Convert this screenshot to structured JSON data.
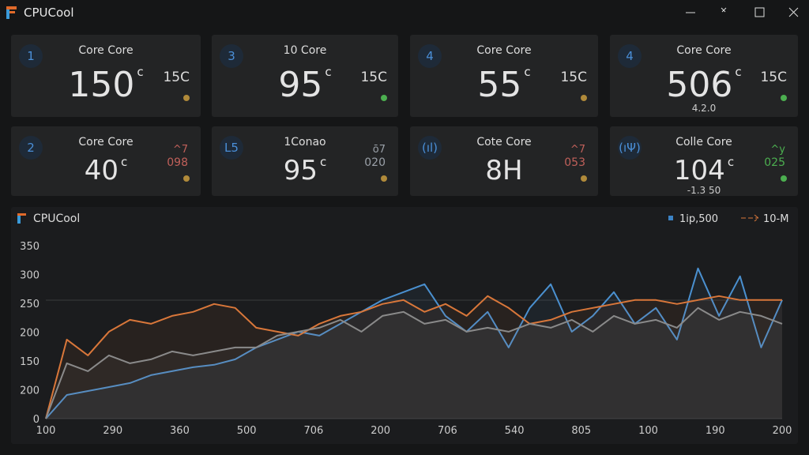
{
  "window": {
    "title": "CPUCool"
  },
  "cards": [
    {
      "index": "1",
      "title": "Core Core",
      "temp": "150",
      "unit": "c",
      "side": "15C",
      "sub": null,
      "dot": "#b08a3a"
    },
    {
      "index": "3",
      "title": "10 Core",
      "temp": "95",
      "unit": "c",
      "side": "15C",
      "sub": null,
      "dot": "#4caf50"
    },
    {
      "index": "4",
      "title": "Core Core",
      "temp": "55",
      "unit": "c",
      "side": "15C",
      "sub": null,
      "dot": "#b08a3a"
    },
    {
      "index": "4",
      "title": "Core Core",
      "temp": "506",
      "unit": "c",
      "side": "15C",
      "sub": "4.2.0",
      "dot": "#4caf50"
    },
    {
      "index": "2",
      "title": "Core Core",
      "temp": "40",
      "unit": "c",
      "side": "^7",
      "side2": "098",
      "sideColor": "#c0605a",
      "sub": null,
      "dot": "#b08a3a"
    },
    {
      "index": "L5",
      "title": "1Conao",
      "temp": "95",
      "unit": "c",
      "side": "ō7",
      "side2": "020",
      "sideColor": "#9aa0a8",
      "sub": null,
      "dot": "#b08a3a"
    },
    {
      "index": "(ıl)",
      "title": "Cote Core",
      "temp": "8H",
      "unit": null,
      "side": "^7",
      "side2": "053",
      "sideColor": "#c0605a",
      "sub": null,
      "dot": "#b08a3a"
    },
    {
      "index": "(ıΨ)",
      "title": "Colle Core",
      "temp": "104",
      "unit": "c",
      "side": "^y",
      "side2": "025",
      "sideColor": "#4caf50",
      "sub": "-1.3 50",
      "dot": "#4caf50"
    }
  ],
  "chart": {
    "title": "CPUCool",
    "legend": [
      {
        "name": "1ip,500",
        "color": "#3b82c4"
      },
      {
        "name": "10-M",
        "color": "#d9773a"
      }
    ],
    "y_labels": [
      "350",
      "300",
      "250",
      "200",
      "150",
      "200",
      "0"
    ],
    "x_labels": [
      "100",
      "290",
      "360",
      "500",
      "706",
      "200",
      "706",
      "540",
      "805",
      "100",
      "190",
      "200"
    ],
    "ylim": [
      0,
      350
    ],
    "series": [
      {
        "color": "#4a90d0",
        "values": [
          0,
          48,
          56,
          64,
          72,
          88,
          96,
          104,
          109,
          120,
          144,
          160,
          176,
          168,
          192,
          216,
          240,
          256,
          272,
          208,
          176,
          216,
          144,
          224,
          272,
          176,
          208,
          256,
          192,
          224,
          160,
          304,
          208,
          288,
          144,
          240
        ]
      },
      {
        "color": "#d9773a",
        "values": [
          0,
          160,
          128,
          176,
          200,
          192,
          208,
          216,
          232,
          224,
          184,
          176,
          168,
          192,
          208,
          216,
          232,
          240,
          216,
          232,
          208,
          248,
          224,
          192,
          200,
          216,
          224,
          232,
          240,
          240,
          232,
          240,
          248,
          240,
          240,
          240
        ]
      },
      {
        "color": "#8a8a8a",
        "values": [
          0,
          112,
          96,
          128,
          112,
          120,
          136,
          128,
          136,
          144,
          144,
          168,
          176,
          184,
          200,
          176,
          208,
          216,
          192,
          200,
          176,
          184,
          176,
          192,
          184,
          200,
          176,
          208,
          192,
          200,
          184,
          224,
          200,
          216,
          208,
          192
        ]
      }
    ]
  }
}
